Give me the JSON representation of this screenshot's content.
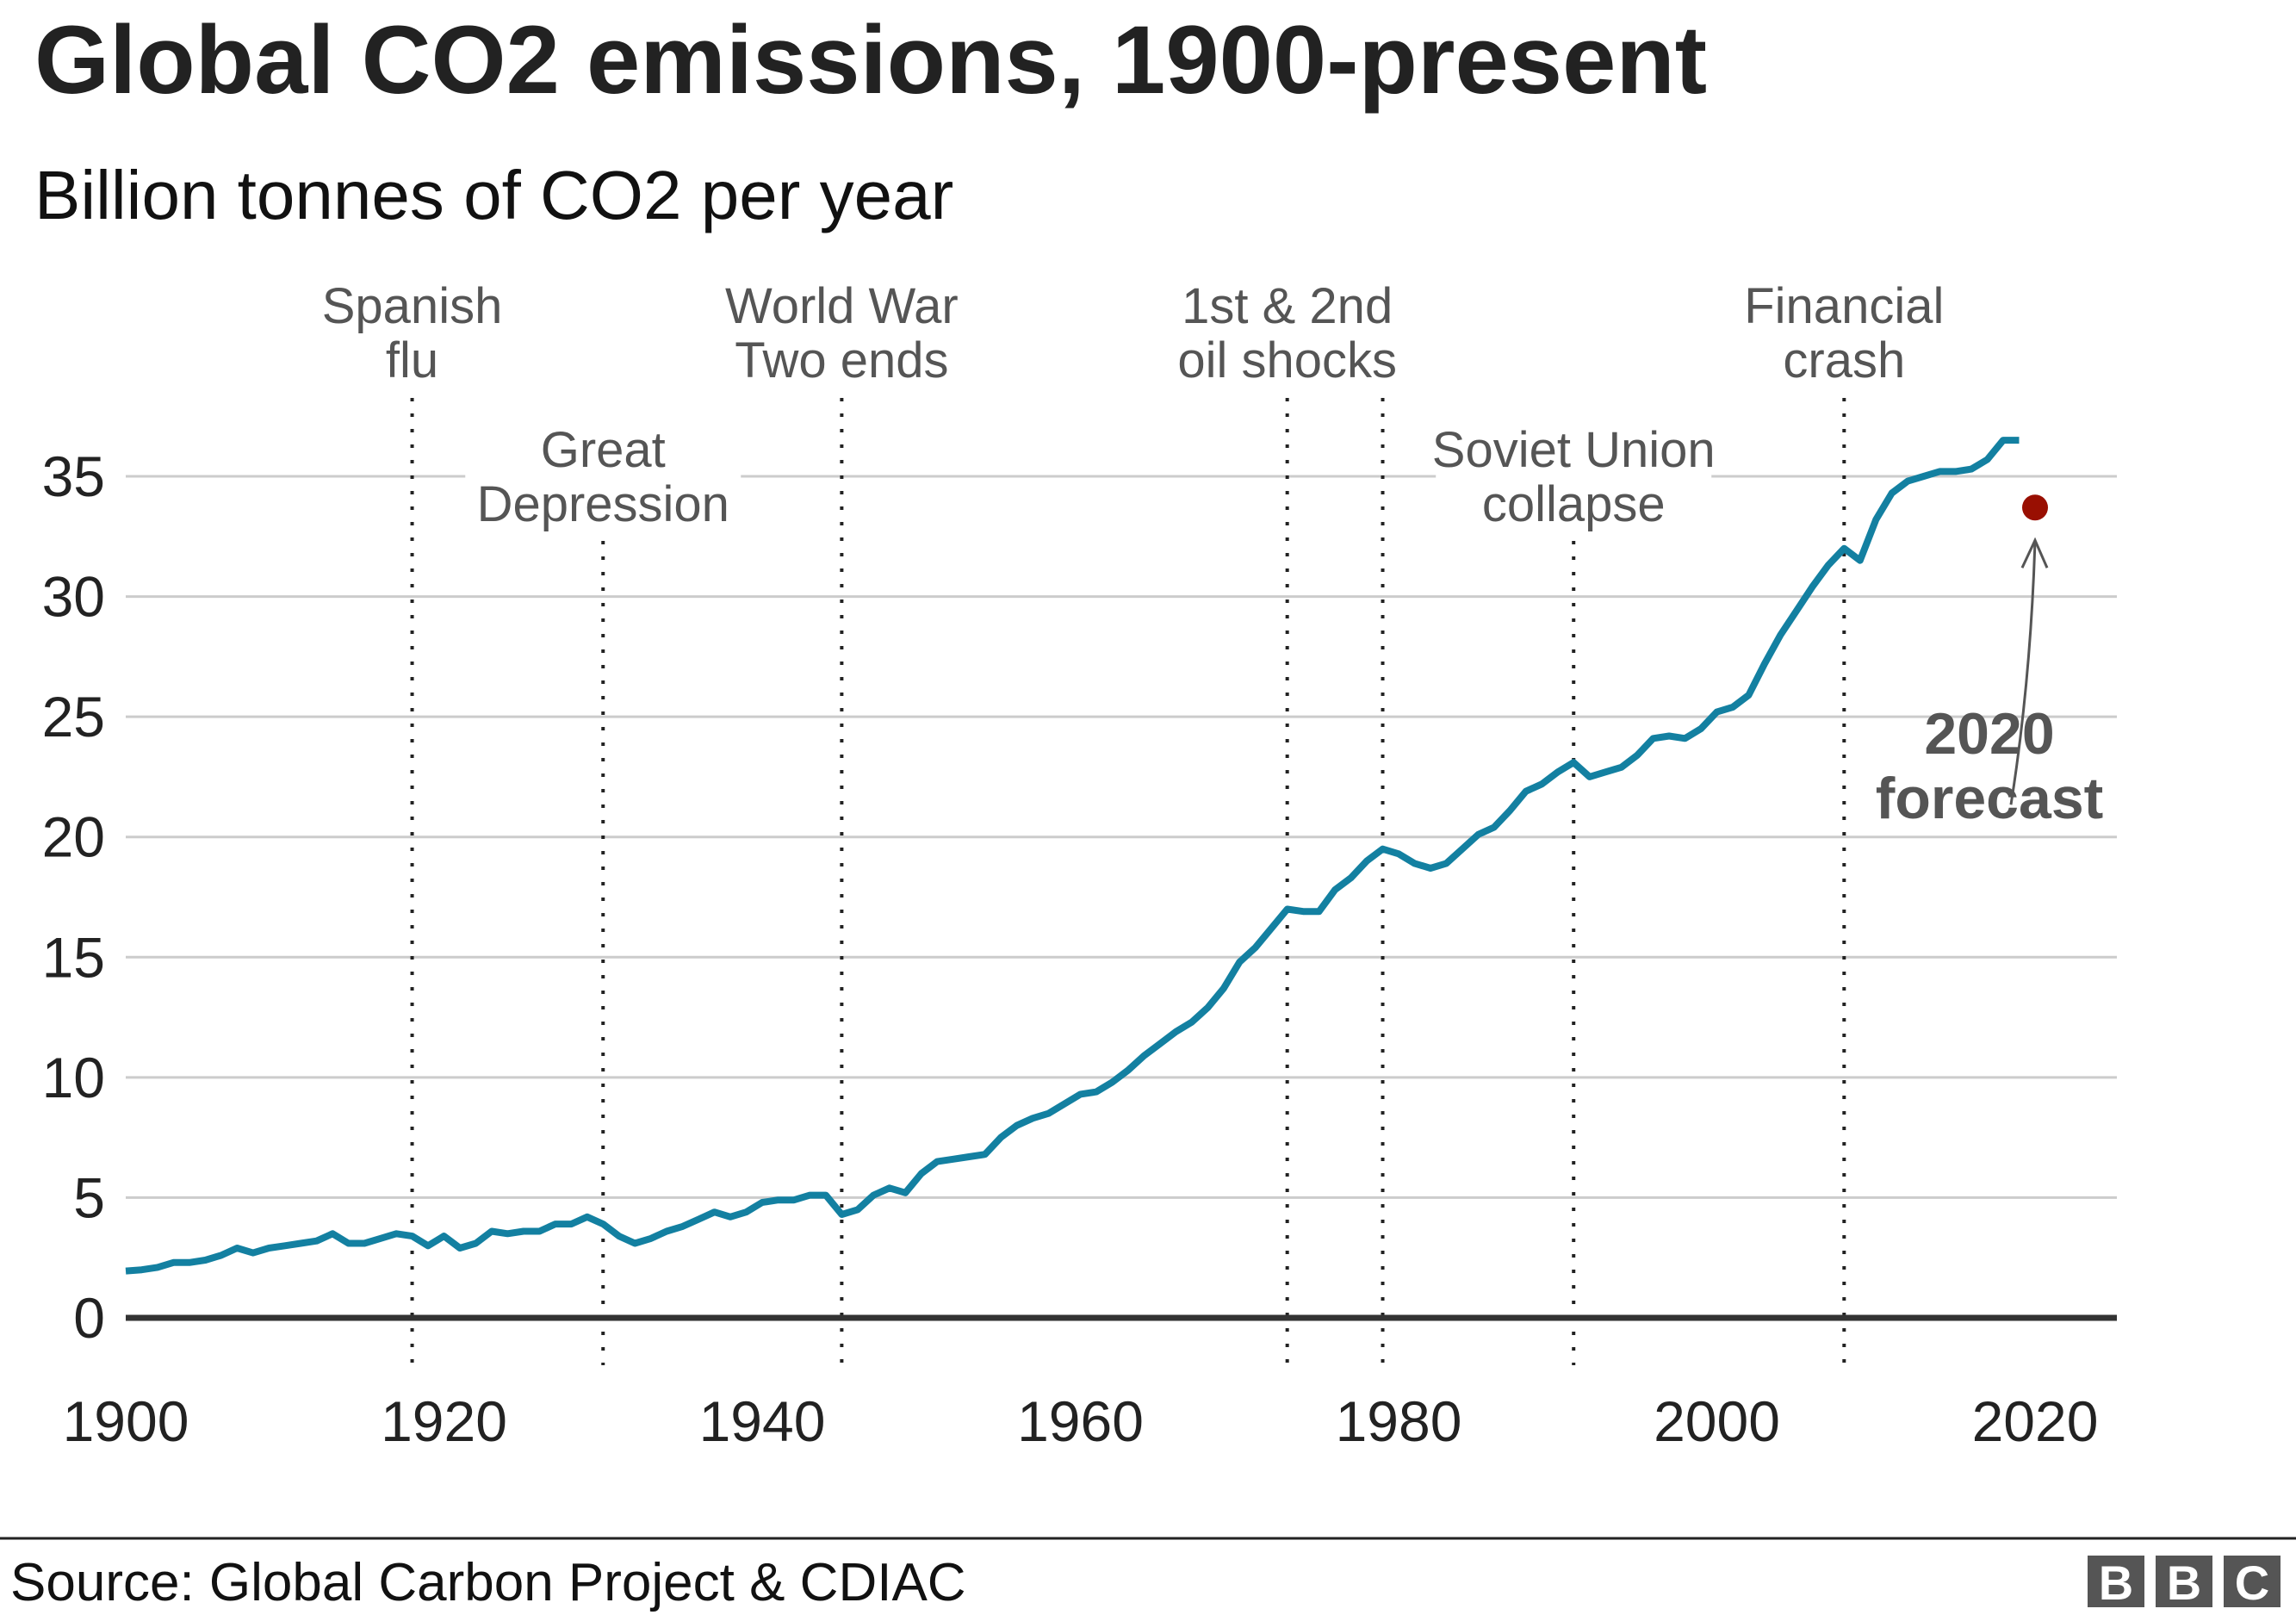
{
  "chart_data": {
    "type": "line",
    "title": "Global CO2 emissions, 1900-present",
    "subtitle": "Billion tonnes of CO2 per year",
    "xlabel": "",
    "ylabel": "",
    "xlim": [
      1900,
      2020
    ],
    "ylim": [
      0,
      35
    ],
    "x_ticks": [
      "1900",
      "1920",
      "1940",
      "1960",
      "1980",
      "2000",
      "2020"
    ],
    "y_ticks": [
      "0",
      "5",
      "10",
      "15",
      "20",
      "25",
      "30",
      "35"
    ],
    "grid": "horizontal",
    "line_color": "#1380A1",
    "x": [
      1900,
      1901,
      1902,
      1903,
      1904,
      1905,
      1906,
      1907,
      1908,
      1909,
      1910,
      1911,
      1912,
      1913,
      1914,
      1915,
      1916,
      1917,
      1918,
      1919,
      1920,
      1921,
      1922,
      1923,
      1924,
      1925,
      1926,
      1927,
      1928,
      1929,
      1930,
      1931,
      1932,
      1933,
      1934,
      1935,
      1936,
      1937,
      1938,
      1939,
      1940,
      1941,
      1942,
      1943,
      1944,
      1945,
      1946,
      1947,
      1948,
      1949,
      1950,
      1951,
      1952,
      1953,
      1954,
      1955,
      1956,
      1957,
      1958,
      1959,
      1960,
      1961,
      1962,
      1963,
      1964,
      1965,
      1966,
      1967,
      1968,
      1969,
      1970,
      1971,
      1972,
      1973,
      1974,
      1975,
      1976,
      1977,
      1978,
      1979,
      1980,
      1981,
      1982,
      1983,
      1984,
      1985,
      1986,
      1987,
      1988,
      1989,
      1990,
      1991,
      1992,
      1993,
      1994,
      1995,
      1996,
      1997,
      1998,
      1999,
      2000,
      2001,
      2002,
      2003,
      2004,
      2005,
      2006,
      2007,
      2008,
      2009,
      2010,
      2011,
      2012,
      2013,
      2014,
      2015,
      2016,
      2017,
      2018,
      2019
    ],
    "values": [
      1.95,
      2.0,
      2.1,
      2.3,
      2.3,
      2.4,
      2.6,
      2.9,
      2.7,
      2.9,
      3.0,
      3.1,
      3.2,
      3.5,
      3.1,
      3.1,
      3.3,
      3.5,
      3.4,
      3.0,
      3.4,
      2.9,
      3.1,
      3.6,
      3.5,
      3.6,
      3.6,
      3.9,
      3.9,
      4.2,
      3.9,
      3.4,
      3.1,
      3.3,
      3.6,
      3.8,
      4.1,
      4.4,
      4.2,
      4.4,
      4.8,
      4.9,
      4.9,
      5.1,
      5.1,
      4.3,
      4.5,
      5.1,
      5.4,
      5.2,
      6.0,
      6.5,
      6.6,
      6.7,
      6.8,
      7.5,
      8.0,
      8.3,
      8.5,
      8.9,
      9.3,
      9.4,
      9.8,
      10.3,
      10.9,
      11.4,
      11.9,
      12.3,
      12.9,
      13.7,
      14.8,
      15.4,
      16.2,
      17.0,
      16.9,
      16.9,
      17.8,
      18.3,
      19.0,
      19.5,
      19.3,
      18.9,
      18.7,
      18.9,
      19.5,
      20.1,
      20.4,
      21.1,
      21.9,
      22.2,
      22.7,
      23.1,
      22.5,
      22.7,
      22.9,
      23.4,
      24.1,
      24.2,
      24.1,
      24.5,
      25.2,
      25.4,
      25.9,
      27.2,
      28.4,
      29.4,
      30.4,
      31.3,
      32.0,
      31.5,
      33.2,
      34.3,
      34.8,
      35.0,
      35.2,
      35.2,
      35.3,
      35.7,
      36.5,
      36.5
    ],
    "forecast": {
      "x": 2020,
      "value": 33.7,
      "color": "#990F02",
      "label_lines": [
        "2020",
        "forecast"
      ]
    },
    "events": [
      {
        "year": 1918,
        "lines": [
          "Spanish",
          "flu"
        ],
        "position": "top"
      },
      {
        "year": 1930,
        "lines": [
          "Great",
          "Depression"
        ],
        "position": "middle"
      },
      {
        "year": 1945,
        "lines": [
          "World War",
          "Two ends"
        ],
        "position": "top"
      },
      {
        "year": 1973,
        "lines": [
          "1st & 2nd",
          "oil shocks"
        ],
        "position": "top"
      },
      {
        "year": 1979,
        "lines": [],
        "position": "top"
      },
      {
        "year": 1991,
        "lines": [
          "Soviet Union",
          "collapse"
        ],
        "position": "middle"
      },
      {
        "year": 2008,
        "lines": [
          "Financial",
          "crash"
        ],
        "position": "top"
      }
    ]
  },
  "footer": {
    "source": "Source: Global Carbon Project & CDIAC",
    "logo": "BBC"
  }
}
